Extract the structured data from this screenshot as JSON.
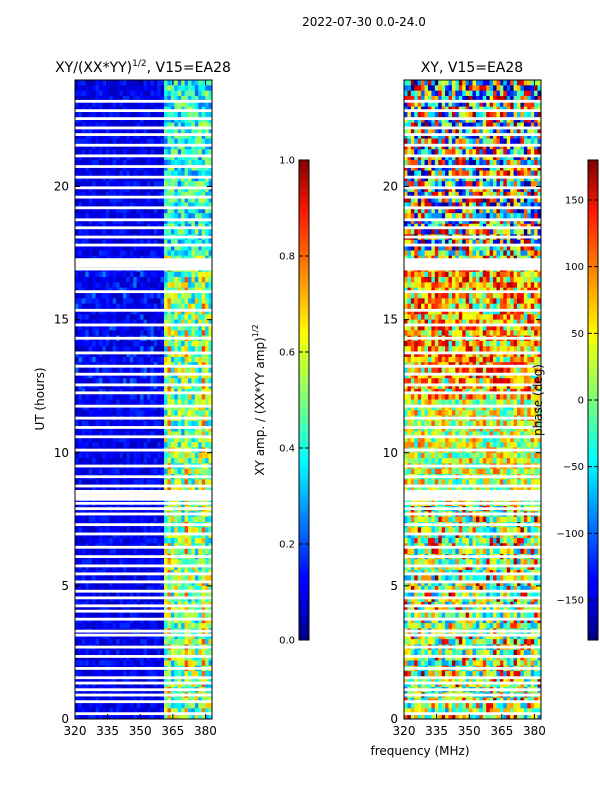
{
  "figure": {
    "suptitle": "2022-07-30 0.0-24.0",
    "xlabel_shared": "frequency (MHz)"
  },
  "chart_data": [
    {
      "type": "heatmap",
      "title": "XY/(XX*YY)",
      "title_sup": "1/2",
      "title_tail": ", V15=EA28",
      "ylabel": "UT (hours)",
      "xlim": [
        320,
        383
      ],
      "ylim": [
        0,
        24
      ],
      "x_ticks": [
        "320",
        "335",
        "350",
        "365",
        "380"
      ],
      "x_tick_values": [
        320,
        335,
        350,
        365,
        380
      ],
      "y_ticks": [
        "0",
        "5",
        "10",
        "15",
        "20"
      ],
      "y_tick_values": [
        0,
        5,
        10,
        15,
        20
      ],
      "colorbar": {
        "label": "XY amp. / (XX*YY amp)",
        "label_sup": "1/2",
        "range": [
          0.0,
          1.0
        ],
        "ticks": [
          "0.0",
          "0.2",
          "0.4",
          "0.6",
          "0.8",
          "1.0"
        ],
        "tick_values": [
          0.0,
          0.2,
          0.4,
          0.6,
          0.8,
          1.0
        ],
        "colormap": "jet"
      },
      "blank_rows_hours": [
        0.2,
        0.65,
        0.9,
        1.1,
        1.35,
        1.55,
        1.9,
        2.35,
        2.7,
        3.15,
        3.3,
        3.75,
        4.05,
        4.25,
        4.55,
        4.8,
        5.15,
        5.45,
        5.75,
        6.1,
        6.45,
        6.95,
        7.3,
        7.7,
        7.9,
        8.1,
        8.35,
        8.55,
        8.75,
        9.1,
        9.5,
        10.1,
        10.6,
        10.95,
        11.3,
        11.75,
        12.25,
        12.55,
        12.95,
        13.25,
        13.75,
        14.3,
        14.8,
        15.35,
        16.05,
        16.9,
        17.05,
        17.25,
        17.8,
        18.1,
        18.45,
        18.75,
        19.2,
        19.6,
        19.95,
        20.35,
        20.75,
        21.15,
        21.55,
        21.95,
        22.2,
        22.55,
        22.85,
        23.2
      ],
      "high_band_mhz": [
        361,
        383
      ]
    },
    {
      "type": "heatmap",
      "title": "XY, V15=EA28",
      "xlim": [
        320,
        383
      ],
      "ylim": [
        0,
        24
      ],
      "x_ticks": [
        "320",
        "335",
        "350",
        "365",
        "380"
      ],
      "x_tick_values": [
        320,
        335,
        350,
        365,
        380
      ],
      "y_ticks": [
        "0",
        "5",
        "10",
        "15",
        "20"
      ],
      "y_tick_values": [
        0,
        5,
        10,
        15,
        20
      ],
      "colorbar": {
        "label": "phase (deg)",
        "range": [
          -180,
          180
        ],
        "ticks": [
          "−150",
          "−100",
          "−50",
          "0",
          "50",
          "100",
          "150"
        ],
        "tick_values": [
          -150,
          -100,
          -50,
          0,
          50,
          100,
          150
        ],
        "colormap": "jet"
      },
      "blank_rows_hours": [
        0.2,
        0.65,
        0.9,
        1.1,
        1.35,
        1.55,
        1.9,
        2.35,
        2.7,
        3.15,
        3.3,
        3.75,
        4.05,
        4.25,
        4.55,
        4.8,
        5.15,
        5.45,
        5.75,
        6.1,
        6.45,
        6.95,
        7.3,
        7.7,
        7.9,
        8.1,
        8.35,
        8.55,
        8.75,
        9.1,
        9.5,
        10.1,
        10.6,
        10.95,
        11.3,
        11.75,
        12.25,
        12.55,
        12.95,
        13.25,
        13.75,
        14.3,
        14.8,
        15.35,
        16.05,
        16.9,
        17.05,
        17.25,
        17.8,
        18.1,
        18.45,
        18.75,
        19.2,
        19.6,
        19.95,
        20.35,
        20.75,
        21.15,
        21.55,
        21.95,
        22.2,
        22.55,
        22.85,
        23.2
      ]
    }
  ]
}
